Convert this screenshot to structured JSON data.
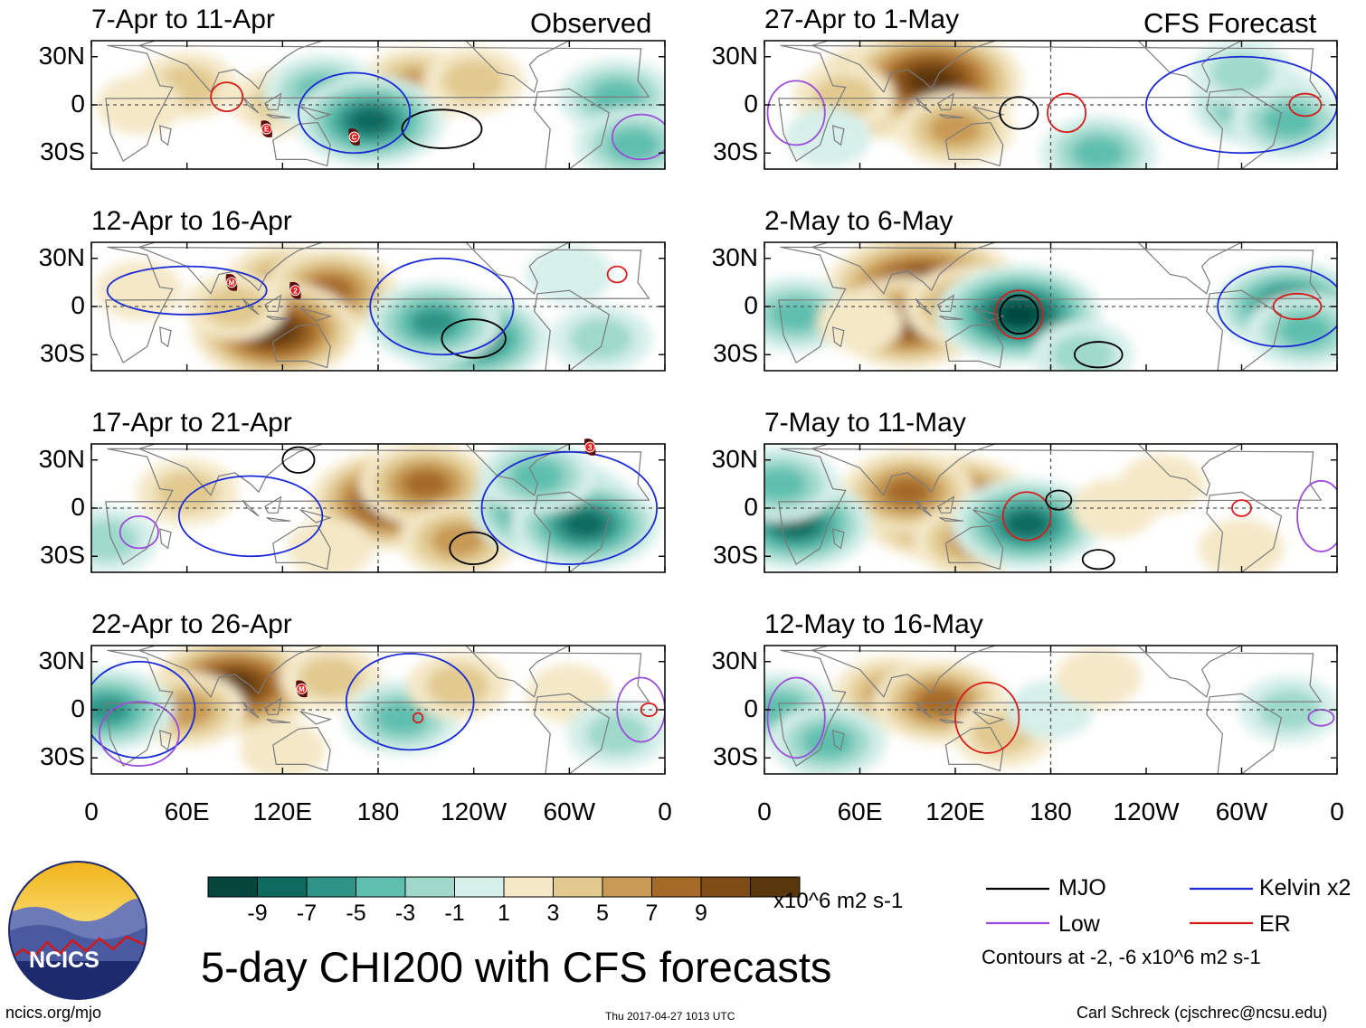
{
  "colors": {
    "brown": [
      "#f4e8c7",
      "#e1c98f",
      "#c89a55",
      "#a56a27",
      "#7e4c14",
      "#5a360c"
    ],
    "green": [
      "#d6efe9",
      "#9fd9cc",
      "#5fbfaf",
      "#2f9487",
      "#0f6a5f",
      "#06463d"
    ],
    "mjo": "#000000",
    "kelvin": "#1a2ad4",
    "low": "#9b4cd8",
    "er": "#d61c1c",
    "coast": "#7a7a7a"
  },
  "chart_data": {
    "type": "heatmap",
    "title": "5-day CHI200 with CFS forecasts",
    "units": "x10^6 m2 s-1",
    "column_headers": [
      "Observed",
      "CFS Forecast"
    ],
    "x_ticks": [
      "0",
      "60E",
      "120E",
      "180",
      "120W",
      "60W",
      "0"
    ],
    "x_tick_values": [
      0,
      60,
      120,
      180,
      240,
      300,
      360
    ],
    "y_ticks": [
      "30N",
      "0",
      "30S"
    ],
    "y_tick_values": [
      30,
      0,
      -30
    ],
    "xlim": [
      0,
      360
    ],
    "ylim": [
      -40,
      40
    ],
    "colorbar_ticks": [
      "-9",
      "-7",
      "-5",
      "-3",
      "-1",
      "1",
      "3",
      "5",
      "7",
      "9"
    ],
    "panels": [
      {
        "title": "7-Apr to 11-Apr",
        "blobs": [
          [
            60,
            12,
            2
          ],
          [
            120,
            2,
            2
          ],
          [
            205,
            12,
            3
          ],
          [
            145,
            8,
            -3
          ],
          [
            175,
            -10,
            -5
          ],
          [
            240,
            15,
            2
          ],
          [
            330,
            5,
            -3
          ],
          [
            340,
            -25,
            -3
          ],
          [
            30,
            0,
            1
          ]
        ],
        "contours": [
          {
            "k": "mjo",
            "x": 220,
            "y": -15,
            "rx": 25,
            "ry": 12
          },
          {
            "k": "kelvin",
            "x": 165,
            "y": -5,
            "rx": 35,
            "ry": 25
          },
          {
            "k": "er",
            "x": 85,
            "y": 5,
            "rx": 10,
            "ry": 9
          },
          {
            "k": "low",
            "x": 345,
            "y": -20,
            "rx": 18,
            "ry": 14
          }
        ]
      },
      {
        "title": "27-Apr to 1-May",
        "blobs": [
          [
            80,
            10,
            6
          ],
          [
            105,
            15,
            7
          ],
          [
            120,
            -15,
            3
          ],
          [
            50,
            5,
            2
          ],
          [
            310,
            0,
            -4
          ],
          [
            330,
            -10,
            -3
          ],
          [
            300,
            20,
            -2
          ],
          [
            210,
            -30,
            -3
          ],
          [
            40,
            -20,
            -1
          ]
        ],
        "contours": [
          {
            "k": "mjo",
            "x": 160,
            "y": -5,
            "rx": 12,
            "ry": 10
          },
          {
            "k": "er",
            "x": 190,
            "y": -5,
            "rx": 12,
            "ry": 12
          },
          {
            "k": "er",
            "x": 340,
            "y": 0,
            "rx": 10,
            "ry": 7
          },
          {
            "k": "kelvin",
            "x": 300,
            "y": 0,
            "rx": 60,
            "ry": 30
          },
          {
            "k": "low",
            "x": 20,
            "y": -5,
            "rx": 18,
            "ry": 20
          }
        ]
      },
      {
        "title": "12-Apr to 16-Apr",
        "blobs": [
          [
            120,
            15,
            3
          ],
          [
            150,
            10,
            4
          ],
          [
            115,
            -15,
            6
          ],
          [
            90,
            0,
            2
          ],
          [
            240,
            -20,
            -5
          ],
          [
            215,
            -10,
            -4
          ],
          [
            320,
            -20,
            -2
          ],
          [
            30,
            10,
            1
          ],
          [
            300,
            20,
            -1
          ]
        ],
        "contours": [
          {
            "k": "mjo",
            "x": 240,
            "y": -20,
            "rx": 20,
            "ry": 12
          },
          {
            "k": "kelvin",
            "x": 220,
            "y": 0,
            "rx": 45,
            "ry": 30
          },
          {
            "k": "kelvin",
            "x": 60,
            "y": 10,
            "rx": 50,
            "ry": 15
          },
          {
            "k": "er",
            "x": 330,
            "y": 20,
            "rx": 6,
            "ry": 5
          }
        ]
      },
      {
        "title": "2-May to 6-May",
        "blobs": [
          [
            100,
            10,
            8
          ],
          [
            90,
            -10,
            5
          ],
          [
            130,
            0,
            4
          ],
          [
            160,
            -5,
            -6
          ],
          [
            330,
            0,
            -5
          ],
          [
            340,
            -15,
            -3
          ],
          [
            20,
            -5,
            -3
          ],
          [
            200,
            -30,
            -2
          ],
          [
            60,
            -10,
            1
          ]
        ],
        "contours": [
          {
            "k": "mjo",
            "x": 160,
            "y": -5,
            "rx": 12,
            "ry": 12
          },
          {
            "k": "er",
            "x": 160,
            "y": -5,
            "rx": 15,
            "ry": 15
          },
          {
            "k": "er",
            "x": 335,
            "y": 0,
            "rx": 15,
            "ry": 8
          },
          {
            "k": "kelvin",
            "x": 325,
            "y": 0,
            "rx": 40,
            "ry": 25
          },
          {
            "k": "mjo",
            "x": 210,
            "y": -30,
            "rx": 15,
            "ry": 8
          }
        ]
      },
      {
        "title": "17-Apr to 21-Apr",
        "blobs": [
          [
            190,
            5,
            6
          ],
          [
            210,
            15,
            4
          ],
          [
            230,
            -20,
            3
          ],
          [
            60,
            10,
            2
          ],
          [
            290,
            0,
            -6
          ],
          [
            310,
            -10,
            -5
          ],
          [
            280,
            20,
            -3
          ],
          [
            10,
            -20,
            -2
          ],
          [
            150,
            -25,
            1
          ]
        ],
        "contours": [
          {
            "k": "mjo",
            "x": 240,
            "y": -25,
            "rx": 15,
            "ry": 10
          },
          {
            "k": "mjo",
            "x": 130,
            "y": 30,
            "rx": 10,
            "ry": 8
          },
          {
            "k": "kelvin",
            "x": 300,
            "y": 0,
            "rx": 55,
            "ry": 35
          },
          {
            "k": "kelvin",
            "x": 100,
            "y": -5,
            "rx": 45,
            "ry": 25
          },
          {
            "k": "low",
            "x": 30,
            "y": -15,
            "rx": 12,
            "ry": 10
          }
        ]
      },
      {
        "title": "7-May to 11-May",
        "blobs": [
          [
            115,
            0,
            7
          ],
          [
            90,
            10,
            4
          ],
          [
            130,
            -20,
            3
          ],
          [
            165,
            -10,
            -5
          ],
          [
            20,
            -10,
            -5
          ],
          [
            10,
            15,
            -3
          ],
          [
            220,
            0,
            1
          ],
          [
            250,
            15,
            1
          ],
          [
            300,
            -25,
            1
          ]
        ],
        "contours": [
          {
            "k": "er",
            "x": 165,
            "y": -5,
            "rx": 15,
            "ry": 15
          },
          {
            "k": "mjo",
            "x": 185,
            "y": 5,
            "rx": 8,
            "ry": 6
          },
          {
            "k": "er",
            "x": 300,
            "y": 0,
            "rx": 6,
            "ry": 5
          },
          {
            "k": "low",
            "x": 350,
            "y": -5,
            "rx": 15,
            "ry": 22
          },
          {
            "k": "mjo",
            "x": 210,
            "y": -32,
            "rx": 10,
            "ry": 6
          }
        ]
      },
      {
        "title": "22-Apr to 26-Apr",
        "blobs": [
          [
            90,
            15,
            6
          ],
          [
            60,
            0,
            3
          ],
          [
            150,
            20,
            2
          ],
          [
            10,
            0,
            -4
          ],
          [
            195,
            -5,
            -3
          ],
          [
            230,
            15,
            2
          ],
          [
            300,
            10,
            1
          ],
          [
            330,
            -15,
            -2
          ],
          [
            120,
            -25,
            1
          ]
        ],
        "contours": [
          {
            "k": "kelvin",
            "x": 200,
            "y": 5,
            "rx": 40,
            "ry": 30
          },
          {
            "k": "kelvin",
            "x": 30,
            "y": 0,
            "rx": 35,
            "ry": 30
          },
          {
            "k": "low",
            "x": 30,
            "y": -15,
            "rx": 25,
            "ry": 20
          },
          {
            "k": "low",
            "x": 345,
            "y": 0,
            "rx": 15,
            "ry": 20
          },
          {
            "k": "er",
            "x": 350,
            "y": 0,
            "rx": 5,
            "ry": 4
          },
          {
            "k": "er",
            "x": 205,
            "y": -5,
            "rx": 3,
            "ry": 3
          }
        ]
      },
      {
        "title": "12-May to 16-May",
        "blobs": [
          [
            80,
            10,
            3
          ],
          [
            110,
            5,
            4
          ],
          [
            150,
            -15,
            2
          ],
          [
            10,
            0,
            -3
          ],
          [
            40,
            -20,
            -3
          ],
          [
            180,
            0,
            -1
          ],
          [
            330,
            0,
            -2
          ],
          [
            210,
            20,
            1
          ]
        ],
        "contours": [
          {
            "k": "er",
            "x": 140,
            "y": -5,
            "rx": 20,
            "ry": 22
          },
          {
            "k": "low",
            "x": 20,
            "y": -5,
            "rx": 18,
            "ry": 25
          },
          {
            "k": "low",
            "x": 350,
            "y": -5,
            "rx": 8,
            "ry": 5
          }
        ]
      }
    ],
    "storm_markers": [
      {
        "panel": 0,
        "lon": 110,
        "lat": -15,
        "letter": "E"
      },
      {
        "panel": 0,
        "lon": 165,
        "lat": -20,
        "letter": "C"
      },
      {
        "panel": 2,
        "lon": 88,
        "lat": 15,
        "letter": "M"
      },
      {
        "panel": 2,
        "lon": 128,
        "lat": 10,
        "letter": "2"
      },
      {
        "panel": 4,
        "lon": 313,
        "lat": 38,
        "letter": "3"
      },
      {
        "panel": 6,
        "lon": 132,
        "lat": 13,
        "letter": "M"
      }
    ]
  },
  "legend": {
    "mjo": "MJO",
    "kelvin": "Kelvin x2",
    "low": "Low",
    "er": "ER",
    "note": "Contours at -2, -6 x10^6 m2 s-1"
  },
  "logo": {
    "text": "NCICS"
  },
  "footer": {
    "url": "ncics.org/mjo",
    "timestamp": "Thu 2017-04-27 1013 UTC",
    "author": "Carl Schreck (cjschrec@ncsu.edu)"
  }
}
